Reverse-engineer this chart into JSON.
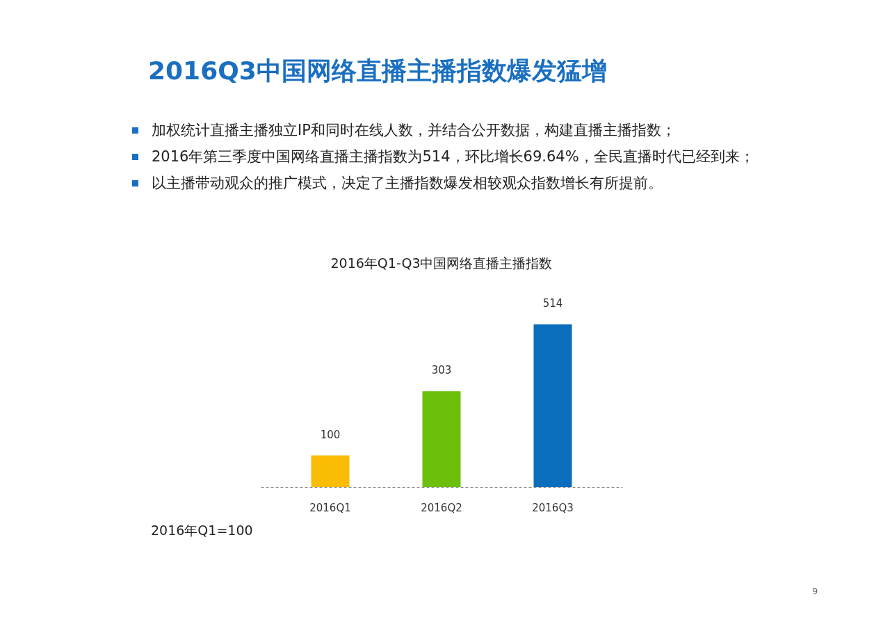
{
  "chart_data": {
    "type": "bar",
    "title": "2016Q3中国网络直播主播指数爆发猛增",
    "subtitle": "2016年Q1-Q3中国网络直播主播指数",
    "annotations": [
      "加权统计直播主播独立IP和同时在线人数，并结合公开数据，构建直播主播指数；",
      "2016年第三季度中国网络直播主播指数为514，环比增长69.64%，全民直播时代已经到来；",
      "以主播带动观众的推广模式，决定了主播指数爆发相较观众指数增长有所提前。",
      "2016年Q1=100",
      "9"
    ],
    "categories": [
      "2016Q1",
      "2016Q2",
      "2016Q3"
    ],
    "values": [
      100,
      303,
      514
    ],
    "colors": [
      "#fbbc05",
      "#6cc00b",
      "#0a6ebd"
    ],
    "data_labels": true,
    "tick_labels": "x"
  }
}
